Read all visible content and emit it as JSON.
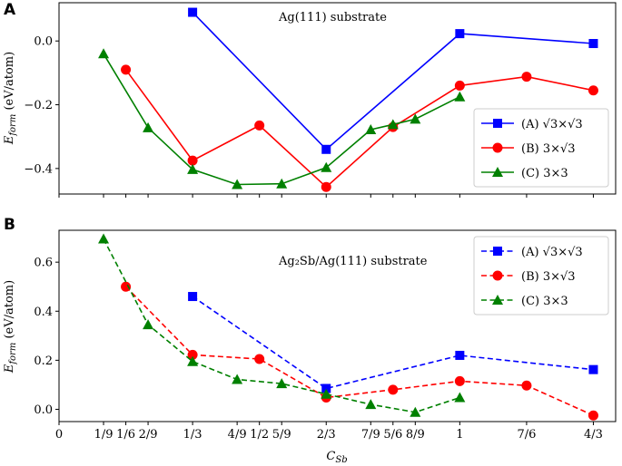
{
  "chart_data": [
    {
      "panel": "A",
      "type": "line",
      "annotation": "Ag(111) substrate",
      "ylabel": "E_form (eV/atom)",
      "ylabel_main": "E",
      "ylabel_sub": "form",
      "ylabel_rest": " (eV/atom)",
      "ylim": [
        -0.48,
        0.12
      ],
      "yticks": [
        0.0,
        -0.2,
        -0.4
      ],
      "ytick_labels": [
        "0.0",
        "−0.2",
        "−0.4"
      ],
      "line_style": "solid",
      "legend_position": "lower-right",
      "series": [
        {
          "key": "A",
          "name": "(A) √3×√3",
          "color": "#0000ff",
          "marker": "square",
          "x": [
            0.3333,
            0.6667,
            1.0,
            1.3333
          ],
          "y": [
            0.09,
            -0.34,
            0.023,
            -0.008
          ]
        },
        {
          "key": "B",
          "name": "(B) 3×√3",
          "color": "#ff0000",
          "marker": "circle",
          "x": [
            0.1667,
            0.3333,
            0.5,
            0.6667,
            0.8333,
            1.0,
            1.1667,
            1.3333
          ],
          "y": [
            -0.09,
            -0.375,
            -0.265,
            -0.458,
            -0.27,
            -0.14,
            -0.112,
            -0.155
          ]
        },
        {
          "key": "C",
          "name": "(C) 3×3",
          "color": "#008000",
          "marker": "triangle",
          "x": [
            0.1111,
            0.2222,
            0.3333,
            0.4444,
            0.5556,
            0.6667,
            0.7778,
            0.8333,
            0.8889,
            1.0
          ],
          "y": [
            -0.04,
            -0.272,
            -0.403,
            -0.45,
            -0.448,
            -0.397,
            -0.278,
            -0.262,
            -0.245,
            -0.175
          ]
        }
      ]
    },
    {
      "panel": "B",
      "type": "line",
      "annotation": "Ag₂Sb/Ag(111) substrate",
      "ylabel": "E_form (eV/atom)",
      "ylabel_main": "E",
      "ylabel_sub": "form",
      "ylabel_rest": " (eV/atom)",
      "xlabel": "C_Sb",
      "xlabel_main": "C",
      "xlabel_sub": "Sb",
      "ylim": [
        -0.05,
        0.73
      ],
      "yticks": [
        0.0,
        0.2,
        0.4,
        0.6
      ],
      "ytick_labels": [
        "0.0",
        "0.2",
        "0.4",
        "0.6"
      ],
      "line_style": "dashed",
      "legend_position": "upper-right",
      "series": [
        {
          "key": "A",
          "name": "(A) √3×√3",
          "color": "#0000ff",
          "marker": "square",
          "x": [
            0.3333,
            0.6667,
            1.0,
            1.3333
          ],
          "y": [
            0.46,
            0.085,
            0.22,
            0.162
          ]
        },
        {
          "key": "B",
          "name": "(B) 3×√3",
          "color": "#ff0000",
          "marker": "circle",
          "x": [
            0.1667,
            0.3333,
            0.5,
            0.6667,
            0.8333,
            1.0,
            1.1667,
            1.3333
          ],
          "y": [
            0.5,
            0.222,
            0.205,
            0.048,
            0.08,
            0.115,
            0.097,
            -0.025
          ]
        },
        {
          "key": "C",
          "name": "(C) 3×3",
          "color": "#008000",
          "marker": "triangle",
          "x": [
            0.1111,
            0.2222,
            0.3333,
            0.4444,
            0.5556,
            0.6667,
            0.7778,
            0.8889,
            1.0
          ],
          "y": [
            0.695,
            0.345,
            0.195,
            0.122,
            0.105,
            0.062,
            0.02,
            -0.012,
            0.048
          ]
        }
      ]
    }
  ],
  "x_axis": {
    "xlim": [
      0.0,
      1.3889
    ],
    "ticks": [
      0.0,
      0.1111,
      0.1667,
      0.2222,
      0.3333,
      0.4444,
      0.5,
      0.5556,
      0.6667,
      0.7778,
      0.8333,
      0.8889,
      1.0,
      1.1667,
      1.3333
    ],
    "tick_labels": [
      "0",
      "1/9",
      "1/6",
      "2/9",
      "1/3",
      "4/9",
      "1/2",
      "5/9",
      "2/3",
      "7/9",
      "5/6",
      "8/9",
      "1",
      "7/6",
      "4/3"
    ]
  }
}
